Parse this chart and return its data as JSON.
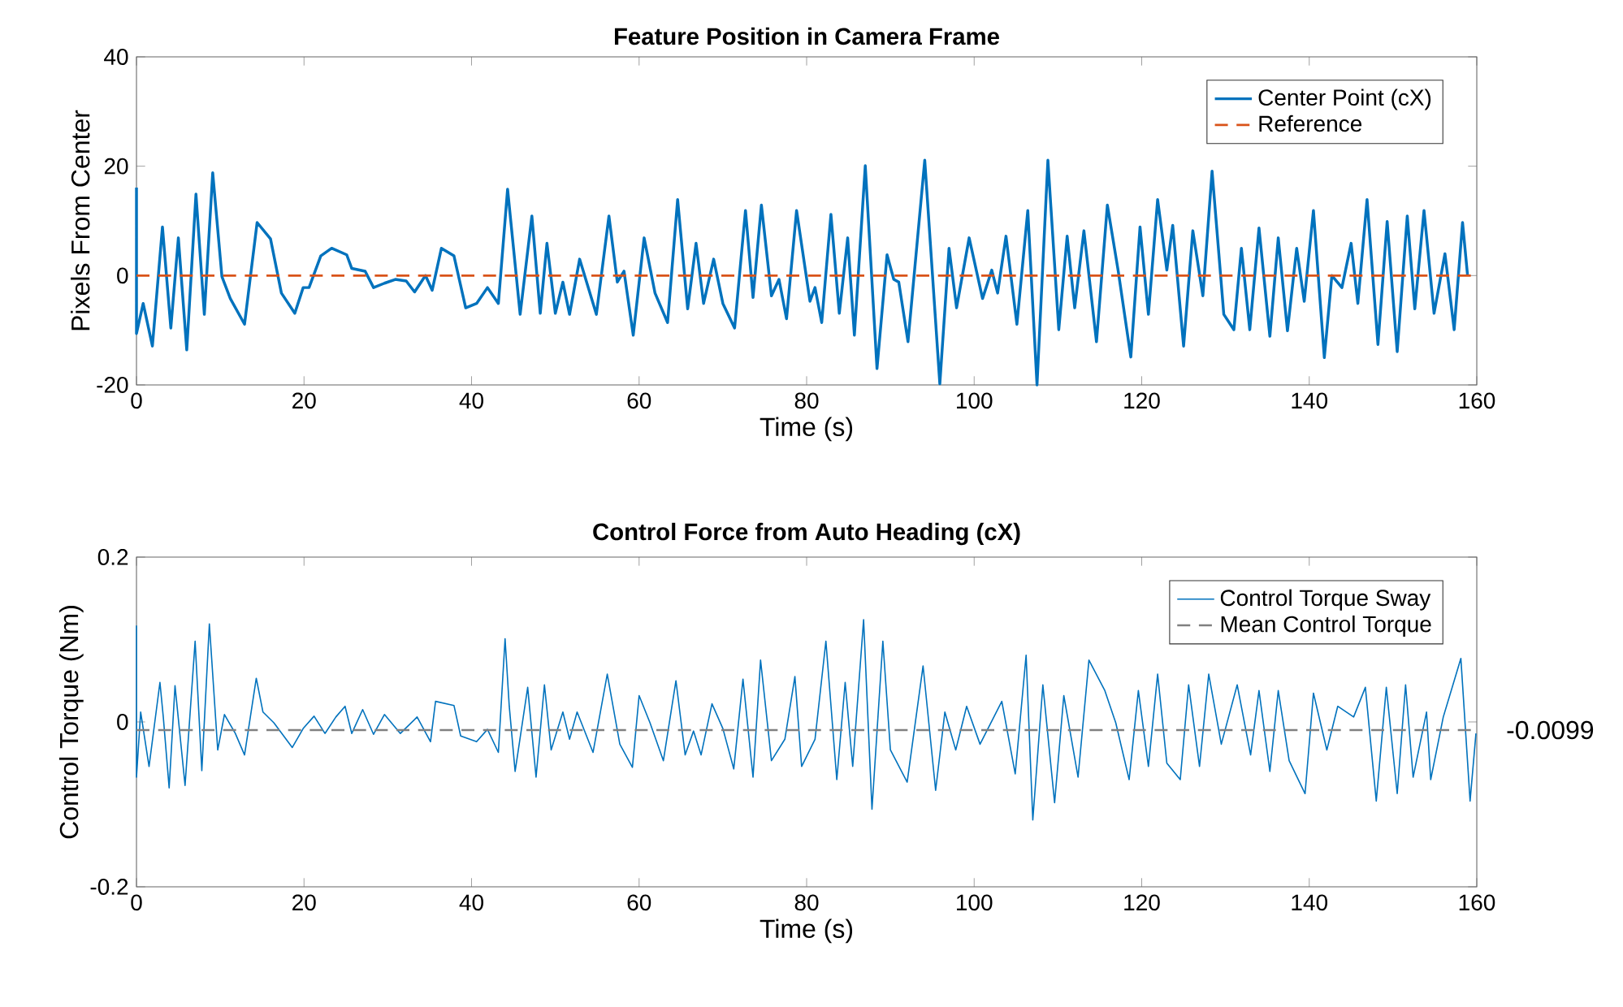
{
  "chart_data": [
    {
      "type": "line",
      "title": "Feature Position in Camera Frame",
      "xlabel": "Time (s)",
      "ylabel": "Pixels From Center",
      "xlim": [
        0,
        160
      ],
      "xticks": [
        0,
        20,
        40,
        60,
        80,
        100,
        120,
        140,
        160
      ],
      "ylim": [
        -20,
        40
      ],
      "yticks": [
        -20,
        0,
        20,
        40
      ],
      "legend": "top right",
      "series": [
        {
          "name": "Center Point (cX)",
          "color": "#0072bd",
          "line_style": "solid",
          "x": [
            0,
            0,
            0.8,
            1.9,
            3.1,
            4.1,
            5.0,
            6.0,
            7.1,
            8.1,
            9.1,
            10.2,
            11.2,
            12.9,
            14.4,
            16.0,
            17.3,
            18.9,
            19.9,
            20.6,
            22.0,
            23.3,
            25.1,
            25.7,
            27.3,
            28.3,
            29.6,
            30.9,
            32.2,
            33.2,
            34.5,
            35.3,
            36.4,
            37.9,
            39.3,
            40.6,
            41.9,
            43.2,
            44.3,
            45.8,
            47.2,
            48.2,
            49.0,
            50.0,
            50.9,
            51.7,
            52.9,
            54.9,
            56.4,
            57.4,
            58.2,
            59.3,
            60.6,
            61.9,
            63.4,
            64.6,
            65.8,
            66.8,
            67.7,
            68.9,
            70.0,
            71.4,
            72.7,
            73.6,
            74.6,
            75.8,
            76.7,
            77.6,
            78.8,
            80.4,
            81.0,
            81.8,
            82.9,
            83.9,
            84.9,
            85.7,
            87.0,
            88.4,
            89.6,
            90.4,
            91.0,
            92.1,
            94.1,
            95.9,
            97.0,
            97.9,
            99.4,
            101.0,
            102.1,
            102.8,
            103.8,
            105.1,
            106.4,
            107.5,
            108.8,
            110.1,
            111.1,
            112.0,
            113.1,
            114.6,
            115.9,
            117.2,
            118.7,
            119.8,
            120.8,
            121.9,
            123.0,
            123.7,
            125.0,
            126.1,
            127.3,
            128.4,
            129.8,
            131.0,
            131.9,
            132.9,
            134.0,
            135.3,
            136.3,
            137.4,
            138.5,
            139.4,
            140.5,
            141.8,
            142.7,
            143.9,
            145.0,
            145.8,
            146.9,
            148.2,
            149.3,
            150.5,
            151.7,
            152.6,
            153.7,
            154.9,
            156.2,
            157.3,
            158.3,
            158.9
          ],
          "values": [
            16.1,
            -10.6,
            -5.1,
            -12.9,
            8.9,
            -9.6,
            6.9,
            -13.6,
            14.9,
            -7.1,
            18.8,
            -0.2,
            -4.2,
            -8.9,
            9.7,
            6.7,
            -3.2,
            -6.9,
            -2.2,
            -2.2,
            3.6,
            5.0,
            3.8,
            1.3,
            0.8,
            -2.2,
            -1.4,
            -0.7,
            -1.0,
            -3.0,
            0,
            -2.7,
            5.0,
            3.6,
            -5.9,
            -5.1,
            -2.2,
            -5.1,
            15.8,
            -7.1,
            10.9,
            -6.9,
            5.9,
            -6.9,
            -1.2,
            -7.1,
            3.0,
            -7.1,
            10.9,
            -1.2,
            0.8,
            -10.9,
            6.9,
            -3.2,
            -8.6,
            13.9,
            -6.1,
            5.9,
            -5.1,
            3.0,
            -5.1,
            -9.6,
            11.9,
            -4.0,
            12.9,
            -3.7,
            -0.7,
            -7.9,
            11.9,
            -4.7,
            -2.2,
            -8.6,
            11.2,
            -6.9,
            6.9,
            -10.9,
            20.1,
            -17.0,
            3.8,
            -0.7,
            -1.2,
            -12.1,
            21.1,
            -19.8,
            5.0,
            -5.9,
            6.9,
            -4.2,
            1.0,
            -3.2,
            7.2,
            -8.9,
            11.9,
            -20,
            21.1,
            -9.9,
            7.2,
            -5.9,
            8.2,
            -12.1,
            12.9,
            0.8,
            -14.9,
            8.9,
            -7.1,
            13.9,
            1.0,
            9.2,
            -12.9,
            8.2,
            -3.7,
            19.1,
            -7.1,
            -9.9,
            5.0,
            -9.9,
            8.7,
            -11.1,
            6.9,
            -10.1,
            5.0,
            -4.7,
            11.9,
            -15.0,
            0,
            -2.2,
            5.9,
            -5.1,
            13.9,
            -12.6,
            9.9,
            -13.9,
            10.9,
            -6.1,
            11.9,
            -6.9,
            4.0,
            -9.9,
            9.7,
            0
          ]
        },
        {
          "name": "Reference",
          "color": "#d95319",
          "line_style": "dashed",
          "x": [
            0,
            160
          ],
          "values": [
            0,
            0
          ]
        }
      ]
    },
    {
      "type": "line",
      "title": "Control Force from Auto Heading (cX)",
      "xlabel": "Time (s)",
      "ylabel": "Control Torque (Nm)",
      "xlim": [
        0,
        160
      ],
      "xticks": [
        0,
        20,
        40,
        60,
        80,
        100,
        120,
        140,
        160
      ],
      "ylim": [
        -0.2,
        0.2
      ],
      "yticks": [
        {
          "value": -0.2,
          "label": "-0.2"
        },
        {
          "value": 0,
          "label": "0"
        },
        {
          "value": 0.2,
          "label": "0.2"
        }
      ],
      "legend": "top right",
      "annotations": [
        {
          "text": "-0.0099",
          "x": 160,
          "y": -0.0099
        }
      ],
      "series": [
        {
          "name": "Control Torque Sway",
          "color": "#0072bd",
          "line_style": "solid",
          "x": [
            0,
            0,
            0.5,
            1.5,
            2.8,
            3.2,
            3.9,
            4.6,
            5.8,
            7.0,
            7.8,
            8.7,
            9.7,
            10.5,
            11.8,
            12.9,
            14.3,
            15.1,
            16.4,
            18.6,
            19.9,
            21.2,
            22.5,
            23.8,
            24.9,
            25.7,
            27.0,
            28.3,
            29.6,
            31.5,
            33.5,
            35.1,
            35.7,
            37.9,
            38.7,
            40.6,
            41.9,
            43.2,
            44.0,
            44.5,
            45.2,
            46.7,
            47.7,
            48.7,
            49.5,
            50.9,
            51.7,
            52.6,
            54.5,
            56.2,
            57.7,
            59.2,
            60.0,
            61.3,
            62.9,
            64.4,
            65.5,
            66.5,
            67.4,
            68.7,
            70.0,
            71.3,
            72.4,
            73.6,
            74.5,
            75.8,
            77.4,
            78.6,
            79.4,
            81.0,
            82.3,
            83.6,
            84.6,
            85.5,
            86.8,
            87.8,
            89.1,
            90.0,
            92.0,
            93.9,
            95.4,
            96.5,
            97.8,
            99.1,
            100.7,
            102.0,
            103.3,
            104.9,
            106.2,
            107.0,
            108.2,
            109.6,
            110.7,
            112.4,
            113.7,
            115.6,
            116.9,
            118.5,
            119.6,
            120.8,
            121.9,
            123.0,
            124.6,
            125.6,
            126.9,
            128.0,
            129.5,
            131.4,
            133.0,
            134.0,
            135.3,
            136.3,
            137.6,
            139.5,
            140.5,
            142.1,
            143.4,
            145.3,
            146.7,
            148.0,
            149.2,
            150.5,
            151.5,
            152.4,
            154.0,
            154.5,
            156.0,
            158.1,
            159.2,
            159.9
          ],
          "values": [
            0.117,
            -0.067,
            0.012,
            -0.054,
            0.048,
            0.006,
            -0.08,
            0.044,
            -0.077,
            0.098,
            -0.059,
            0.119,
            -0.034,
            0.009,
            -0.014,
            -0.04,
            0.053,
            0.012,
            -0.001,
            -0.031,
            -0.008,
            0.007,
            -0.014,
            0.006,
            0.019,
            -0.014,
            0.015,
            -0.015,
            0.009,
            -0.014,
            0.006,
            -0.024,
            0.025,
            0.02,
            -0.017,
            -0.024,
            -0.009,
            -0.037,
            0.101,
            0.019,
            -0.06,
            0.042,
            -0.067,
            0.045,
            -0.034,
            0.012,
            -0.021,
            0.012,
            -0.037,
            0.058,
            -0.027,
            -0.055,
            0.032,
            -0.001,
            -0.047,
            0.05,
            -0.04,
            -0.011,
            -0.04,
            0.022,
            -0.008,
            -0.057,
            0.052,
            -0.067,
            0.075,
            -0.047,
            -0.021,
            0.055,
            -0.054,
            -0.021,
            0.098,
            -0.07,
            0.048,
            -0.054,
            0.124,
            -0.106,
            0.098,
            -0.034,
            -0.073,
            0.068,
            -0.083,
            0.012,
            -0.034,
            0.019,
            -0.027,
            -0.001,
            0.025,
            -0.063,
            0.081,
            -0.119,
            0.045,
            -0.098,
            0.032,
            -0.067,
            0.075,
            0.038,
            -0.001,
            -0.07,
            0.038,
            -0.054,
            0.058,
            -0.05,
            -0.07,
            0.045,
            -0.054,
            0.058,
            -0.027,
            0.045,
            -0.04,
            0.038,
            -0.06,
            0.038,
            -0.047,
            -0.087,
            0.035,
            -0.034,
            0.019,
            0.006,
            0.042,
            -0.096,
            0.042,
            -0.087,
            0.045,
            -0.067,
            0.012,
            -0.07,
            0.006,
            0.077,
            -0.096,
            -0.014
          ]
        },
        {
          "name": "Mean Control Torque",
          "color": "#808080",
          "line_style": "dashed",
          "x": [
            0,
            160
          ],
          "values": [
            -0.0099,
            -0.0099
          ]
        }
      ]
    }
  ]
}
